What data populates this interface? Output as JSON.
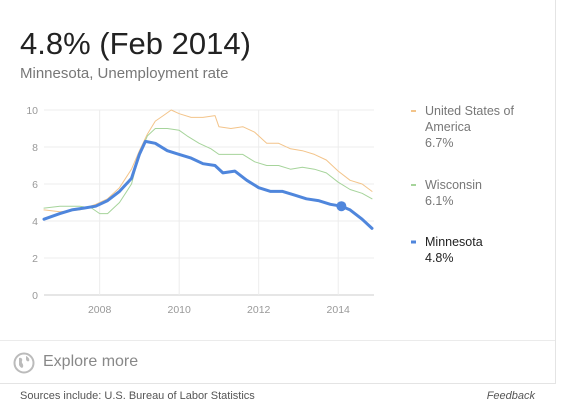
{
  "header": {
    "title": "4.8% (Feb 2014)",
    "subtitle": "Minnesota, Unemployment rate"
  },
  "explore": {
    "label": "Explore more",
    "icon": "globe-icon"
  },
  "footer": {
    "sources": "Sources include: U.S. Bureau of Labor Statistics",
    "feedback": "Feedback"
  },
  "chart_data": {
    "type": "line",
    "ylim": [
      0,
      10
    ],
    "xlim": [
      2006.6,
      2014.9
    ],
    "y_ticks": [
      "0",
      "2",
      "4",
      "6",
      "8",
      "10"
    ],
    "x_ticks": [
      "2008",
      "2010",
      "2012",
      "2014"
    ],
    "grid": true,
    "legend_position": "right",
    "highlight": {
      "series": 2,
      "x": 2014.08,
      "y": 4.8
    },
    "series": [
      {
        "name": "United States of America",
        "last_value": "6.7%",
        "color": "#f3c48a",
        "points": [
          [
            2006.6,
            4.6
          ],
          [
            2007.0,
            4.5
          ],
          [
            2007.5,
            4.6
          ],
          [
            2007.9,
            4.9
          ],
          [
            2008.2,
            5.2
          ],
          [
            2008.5,
            5.8
          ],
          [
            2008.8,
            6.8
          ],
          [
            2009.0,
            7.8
          ],
          [
            2009.2,
            8.7
          ],
          [
            2009.4,
            9.4
          ],
          [
            2009.6,
            9.7
          ],
          [
            2009.8,
            10.0
          ],
          [
            2010.0,
            9.8
          ],
          [
            2010.3,
            9.6
          ],
          [
            2010.6,
            9.6
          ],
          [
            2010.9,
            9.7
          ],
          [
            2011.0,
            9.1
          ],
          [
            2011.3,
            9.0
          ],
          [
            2011.6,
            9.1
          ],
          [
            2011.9,
            8.8
          ],
          [
            2012.2,
            8.2
          ],
          [
            2012.5,
            8.2
          ],
          [
            2012.8,
            7.9
          ],
          [
            2013.1,
            7.8
          ],
          [
            2013.4,
            7.6
          ],
          [
            2013.7,
            7.3
          ],
          [
            2014.0,
            6.7
          ],
          [
            2014.3,
            6.2
          ],
          [
            2014.6,
            6.0
          ],
          [
            2014.85,
            5.6
          ]
        ]
      },
      {
        "name": "Wisconsin",
        "last_value": "6.1%",
        "color": "#a6d49b",
        "points": [
          [
            2006.6,
            4.7
          ],
          [
            2007.0,
            4.8
          ],
          [
            2007.5,
            4.8
          ],
          [
            2007.8,
            4.7
          ],
          [
            2008.0,
            4.4
          ],
          [
            2008.2,
            4.4
          ],
          [
            2008.5,
            5.0
          ],
          [
            2008.8,
            6.0
          ],
          [
            2009.0,
            7.6
          ],
          [
            2009.2,
            8.6
          ],
          [
            2009.4,
            9.0
          ],
          [
            2009.7,
            9.0
          ],
          [
            2010.0,
            8.9
          ],
          [
            2010.2,
            8.6
          ],
          [
            2010.5,
            8.2
          ],
          [
            2010.8,
            7.9
          ],
          [
            2011.0,
            7.6
          ],
          [
            2011.3,
            7.6
          ],
          [
            2011.6,
            7.6
          ],
          [
            2011.9,
            7.2
          ],
          [
            2012.2,
            7.0
          ],
          [
            2012.5,
            7.0
          ],
          [
            2012.8,
            6.8
          ],
          [
            2013.1,
            6.9
          ],
          [
            2013.4,
            6.8
          ],
          [
            2013.7,
            6.6
          ],
          [
            2014.0,
            6.1
          ],
          [
            2014.3,
            5.7
          ],
          [
            2014.6,
            5.5
          ],
          [
            2014.85,
            5.2
          ]
        ]
      },
      {
        "name": "Minnesota",
        "last_value": "4.8%",
        "color": "#4f86dc",
        "points": [
          [
            2006.6,
            4.1
          ],
          [
            2007.0,
            4.4
          ],
          [
            2007.3,
            4.6
          ],
          [
            2007.6,
            4.7
          ],
          [
            2007.9,
            4.8
          ],
          [
            2008.2,
            5.1
          ],
          [
            2008.5,
            5.6
          ],
          [
            2008.8,
            6.3
          ],
          [
            2009.0,
            7.6
          ],
          [
            2009.15,
            8.3
          ],
          [
            2009.4,
            8.2
          ],
          [
            2009.7,
            7.8
          ],
          [
            2010.0,
            7.6
          ],
          [
            2010.3,
            7.4
          ],
          [
            2010.6,
            7.1
          ],
          [
            2010.9,
            7.0
          ],
          [
            2011.1,
            6.6
          ],
          [
            2011.4,
            6.7
          ],
          [
            2011.7,
            6.2
          ],
          [
            2012.0,
            5.8
          ],
          [
            2012.3,
            5.6
          ],
          [
            2012.6,
            5.6
          ],
          [
            2012.9,
            5.4
          ],
          [
            2013.2,
            5.2
          ],
          [
            2013.5,
            5.1
          ],
          [
            2013.8,
            4.9
          ],
          [
            2014.08,
            4.8
          ],
          [
            2014.3,
            4.6
          ],
          [
            2014.6,
            4.1
          ],
          [
            2014.85,
            3.6
          ]
        ]
      }
    ]
  }
}
